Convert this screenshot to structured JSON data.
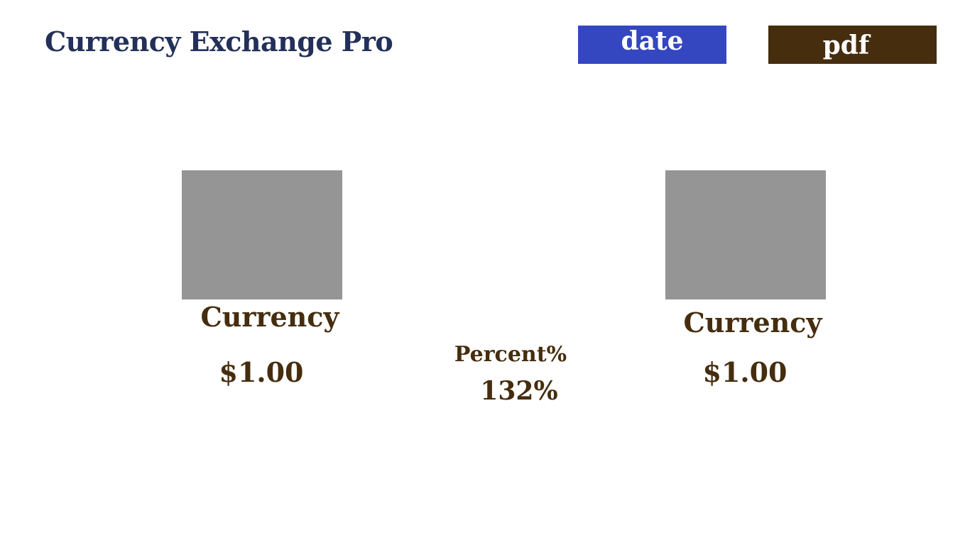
{
  "header": {
    "title": "Currency Exchange Pro",
    "date_button_label": "date",
    "pdf_button_label": "pdf"
  },
  "colors": {
    "title": "#22305a",
    "date_button": "#3447c0",
    "pdf_button": "#452d0e",
    "text": "#452d0e",
    "flag_placeholder": "#959595"
  },
  "exchange": {
    "from": {
      "currency_label": "Currency",
      "amount": "$1.00"
    },
    "rate": {
      "label": "Percent%",
      "value": "132%"
    },
    "to": {
      "currency_label": "Currency",
      "amount": "$1.00"
    }
  }
}
